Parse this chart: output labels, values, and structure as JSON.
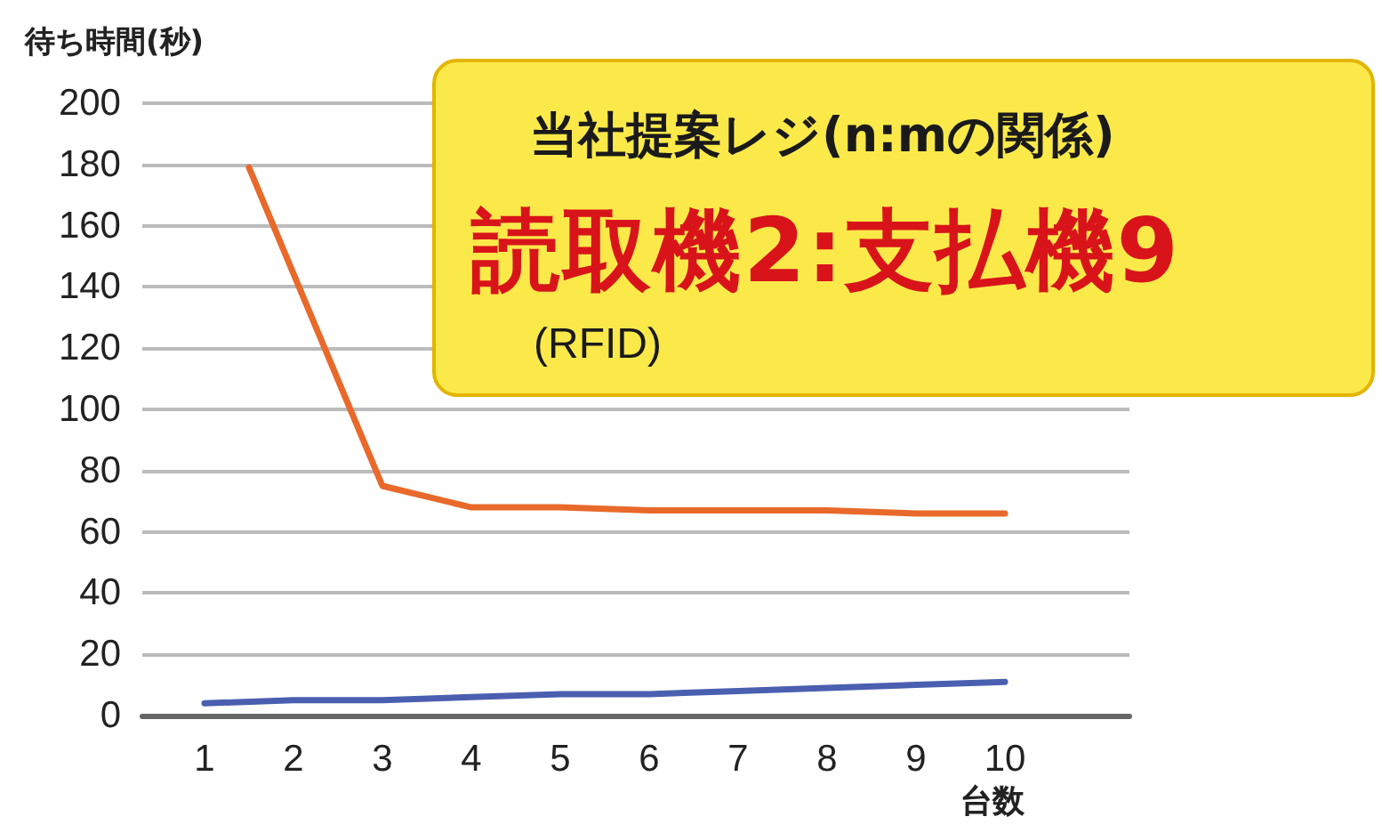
{
  "chart_data": {
    "type": "line",
    "ylabel": "待ち時間(秒)",
    "xlabel": "台数",
    "annotations": [
      "当社提案レジ(n:mの関係)",
      "読取機2:支払機9",
      "(RFID)"
    ],
    "series": [
      {
        "color": "#e8692a",
        "x": [
          1.5,
          3,
          4,
          5,
          6,
          7,
          8,
          9,
          10
        ],
        "values": [
          179,
          75,
          68,
          68,
          67,
          67,
          67,
          66,
          66
        ]
      },
      {
        "color": "#4a5fb0",
        "x": [
          1,
          2,
          3,
          4,
          5,
          6,
          7,
          8,
          9,
          10
        ],
        "values": [
          4,
          5,
          5,
          6,
          7,
          7,
          8,
          9,
          10,
          11
        ]
      }
    ],
    "xlim": [
      0.3,
      11.4
    ],
    "xticks": [
      1,
      2,
      3,
      4,
      5,
      6,
      7,
      8,
      9,
      10
    ],
    "ylim": [
      0,
      200
    ],
    "yticks": [
      0,
      20,
      40,
      60,
      80,
      100,
      120,
      140,
      160,
      180,
      200
    ],
    "grid": "y",
    "marker": "none",
    "line_style": "solid"
  }
}
